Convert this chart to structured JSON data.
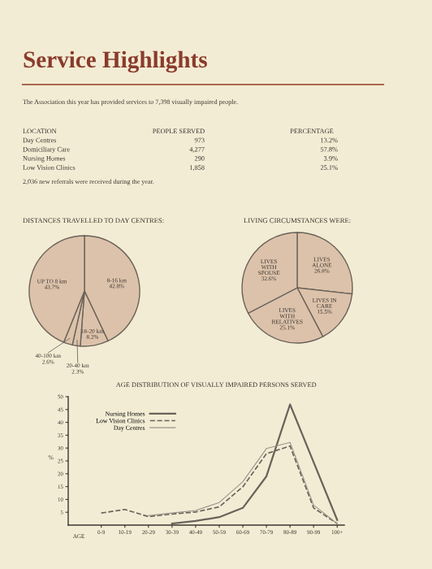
{
  "chart_data": [
    {
      "type": "other",
      "title": "Service Highlights",
      "subtitle": "The Association this year has provided services to 7,398 visually impaired people.",
      "annotations": [
        "LOCATION",
        "PEOPLE SERVED",
        "PERCENTAGE",
        "Day Centres",
        "973",
        "13.2%",
        "Domiciliary Care",
        "4,277",
        "57.8%",
        "Nursing Homes",
        "290",
        "3.9%",
        "Low Vision Clinics",
        "1,858",
        "25.1%",
        "2,036 new referrals were received during the year."
      ]
    },
    {
      "type": "pie",
      "title": "DISTANCES TRAVELLED TO DAY CENTRES:",
      "categories": [
        "8-16 km",
        "16-20 km",
        "20-40 km",
        "40-100 km",
        "UP TO 8 km"
      ],
      "values": [
        42.8,
        8.2,
        2.3,
        2.6,
        43.7
      ],
      "colors": [
        "#dcc2aa",
        "#dcc2aa",
        "#dcc2aa",
        "#dcc2aa",
        "#dcc2aa"
      ],
      "value_labels": [
        "42.8%",
        "8.2%",
        "2.3%",
        "2.6%",
        "43.7%"
      ]
    },
    {
      "type": "pie",
      "title": "LIVING CIRCUMSTANCES WERE:",
      "categories": [
        "LIVES\nALONE",
        "LIVES IN\nCARE",
        "LIVES\nWITH\nRELATIVES",
        "LIVES\nWITH\nSPOUSE"
      ],
      "values": [
        26.8,
        15.5,
        25.1,
        32.6
      ],
      "colors": [
        "#dcc2aa",
        "#dcc2aa",
        "#dcc2aa",
        "#dcc2aa"
      ],
      "value_labels": [
        "26.8%",
        "15.5%",
        "25.1%",
        "32.6%"
      ]
    },
    {
      "type": "line",
      "title": "AGE DISTRIBUTION OF VISUALLY IMPAIRED PERSONS SERVED",
      "xlabel": "AGE",
      "ylabel": "%",
      "categories": [
        "0-9",
        "10-19",
        "20-29",
        "30-39",
        "40-49",
        "50-59",
        "60-69",
        "70-79",
        "80-89",
        "90-99",
        "100+"
      ],
      "series": [
        {
          "name": "Nursing Homes",
          "color": "#6a625a",
          "line_style": "solid",
          "values": [
            null,
            null,
            null,
            0.6,
            1.6,
            3.1,
            6.7,
            19.0,
            47.0,
            24.5,
            2.0
          ]
        },
        {
          "name": "Low Vision Clinics",
          "color": "#6a625a",
          "line_style": "dashed",
          "values": [
            4.7,
            6.1,
            3.3,
            4.3,
            5.1,
            7.1,
            14.9,
            27.8,
            30.8,
            6.7,
            0.6
          ]
        },
        {
          "name": "Day Centres",
          "color": "#9a928a",
          "line_style": "solid",
          "values": [
            null,
            null,
            3.7,
            4.7,
            5.7,
            8.8,
            16.9,
            29.8,
            32.2,
            7.8,
            0.6
          ]
        }
      ],
      "ylim": [
        0,
        50
      ],
      "yticks": [
        5,
        10,
        15,
        20,
        25,
        30,
        35,
        40,
        45,
        50
      ],
      "grid": false,
      "legend": "top left"
    }
  ]
}
